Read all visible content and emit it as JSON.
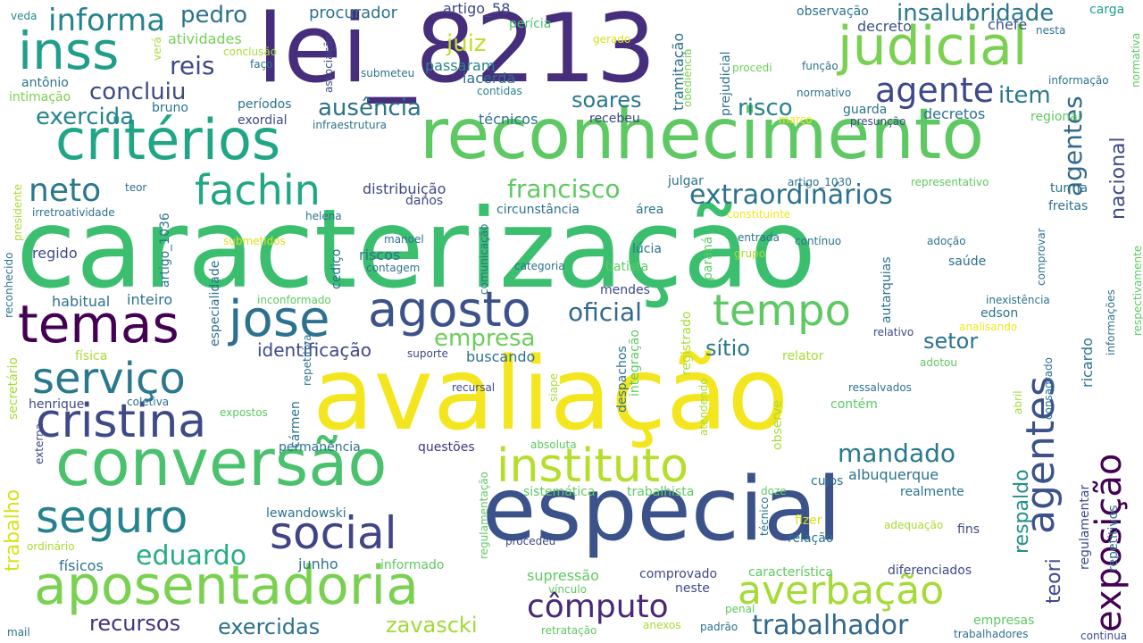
{
  "words": [
    {
      "text": "caracterização",
      "color": "#3bbf6f"
    },
    {
      "text": "avaliação",
      "color": "#f4e61e"
    },
    {
      "text": "lei_8213",
      "color": "#472e7c"
    },
    {
      "text": "especial",
      "color": "#3b528b"
    },
    {
      "text": "reconhecimento",
      "color": "#5ec962"
    },
    {
      "text": "conversão",
      "color": "#4ac16d"
    },
    {
      "text": "aposentadoria",
      "color": "#7ad151"
    },
    {
      "text": "critérios",
      "color": "#21a685"
    },
    {
      "text": "judicial",
      "color": "#7ad151"
    },
    {
      "text": "inss",
      "color": "#1f9e89"
    },
    {
      "text": "instituto",
      "color": "#b5de2b"
    },
    {
      "text": "averbação",
      "color": "#a5db36"
    },
    {
      "text": "cristina",
      "color": "#3e4989"
    },
    {
      "text": "temas",
      "color": "#440154"
    },
    {
      "text": "jose",
      "color": "#2c728e"
    },
    {
      "text": "agosto",
      "color": "#3b528b"
    },
    {
      "text": "tempo",
      "color": "#5ec962"
    },
    {
      "text": "seguro",
      "color": "#26828e"
    },
    {
      "text": "social",
      "color": "#414487"
    },
    {
      "text": "serviço",
      "color": "#2a788e"
    },
    {
      "text": "fachin",
      "color": "#22a785"
    },
    {
      "text": "neto",
      "color": "#2a788e"
    },
    {
      "text": "agentes",
      "color": "#3b528b"
    },
    {
      "text": "exposição",
      "color": "#440154"
    },
    {
      "text": "agente",
      "color": "#3e4989"
    },
    {
      "text": "cômputo",
      "color": "#482878"
    },
    {
      "text": "trabalhador",
      "color": "#31688e"
    },
    {
      "text": "informa",
      "color": "#26828e"
    },
    {
      "text": "eduardo",
      "color": "#26ad81"
    },
    {
      "text": "extraordinários",
      "color": "#2c728e"
    },
    {
      "text": "francisco",
      "color": "#5ec962"
    },
    {
      "text": "mandado",
      "color": "#2a788e"
    },
    {
      "text": "insalubridade",
      "color": "#2a788e"
    },
    {
      "text": "agentes",
      "color": "#31688e"
    },
    {
      "text": "concluiu",
      "color": "#3e4989"
    },
    {
      "text": "reis",
      "color": "#3e4989"
    },
    {
      "text": "juiz",
      "color": "#bddf26"
    },
    {
      "text": "oficial",
      "color": "#31688e"
    },
    {
      "text": "empresa",
      "color": "#6ccd5a"
    },
    {
      "text": "ausência",
      "color": "#2c728e"
    },
    {
      "text": "exercida",
      "color": "#25848e"
    },
    {
      "text": "pedro",
      "color": "#2c728e"
    },
    {
      "text": "item",
      "color": "#2a788e"
    },
    {
      "text": "risco",
      "color": "#26828e"
    },
    {
      "text": "soares",
      "color": "#2a788e"
    },
    {
      "text": "recursos",
      "color": "#46337e"
    },
    {
      "text": "exercidas",
      "color": "#2c728e"
    },
    {
      "text": "zavascki",
      "color": "#a0da39"
    },
    {
      "text": "setor",
      "color": "#2c728e"
    },
    {
      "text": "sítio",
      "color": "#2a788e"
    },
    {
      "text": "nacional",
      "color": "#3e4989"
    },
    {
      "text": "respaldo",
      "color": "#218f8d"
    },
    {
      "text": "teori",
      "color": "#3e4989"
    },
    {
      "text": "trabalho",
      "color": "#d8e219"
    },
    {
      "text": "identificação",
      "color": "#3e4989"
    },
    {
      "text": "procurador",
      "color": "#2c728e"
    },
    {
      "text": "artigo_58",
      "color": "#3e4989"
    },
    {
      "text": "perícia",
      "color": "#4ac16d"
    },
    {
      "text": "observação",
      "color": "#2c728e"
    },
    {
      "text": "carga",
      "color": "#1f9e89"
    },
    {
      "text": "decreto",
      "color": "#3b528b"
    },
    {
      "text": "chefe",
      "color": "#3b528b"
    },
    {
      "text": "nesta",
      "color": "#2c728e"
    },
    {
      "text": "veda",
      "color": "#25858e"
    },
    {
      "text": "atividades",
      "color": "#73d056"
    },
    {
      "text": "conclusão",
      "color": "#a8db34"
    },
    {
      "text": "faço",
      "color": "#2c728e"
    },
    {
      "text": "verá",
      "color": "#a8db34"
    },
    {
      "text": "associação",
      "color": "#3e4989"
    },
    {
      "text": "submeteu",
      "color": "#2c728e"
    },
    {
      "text": "gerado",
      "color": "#d8e219"
    },
    {
      "text": "passaram",
      "color": "#25858e"
    },
    {
      "text": "lacerda",
      "color": "#2c728e"
    },
    {
      "text": "contidas",
      "color": "#25858e"
    },
    {
      "text": "tramitação",
      "color": "#2c728e"
    },
    {
      "text": "obediência",
      "color": "#7ad151"
    },
    {
      "text": "prejudicial",
      "color": "#2c728e"
    },
    {
      "text": "procedi",
      "color": "#6ccd5a"
    },
    {
      "text": "função",
      "color": "#2c728e"
    },
    {
      "text": "normativo",
      "color": "#2c728e"
    },
    {
      "text": "informação",
      "color": "#2c728e"
    },
    {
      "text": "normativa",
      "color": "#5ec962"
    },
    {
      "text": "antônio",
      "color": "#2c728e"
    },
    {
      "text": "intimação",
      "color": "#7ad151"
    },
    {
      "text": "bruno",
      "color": "#2c728e"
    },
    {
      "text": "períodos",
      "color": "#2c728e"
    },
    {
      "text": "exordial",
      "color": "#3e4989"
    },
    {
      "text": "infraestrutura",
      "color": "#2c728e"
    },
    {
      "text": "técnicos",
      "color": "#2c728e"
    },
    {
      "text": "recebeu",
      "color": "#3e4989"
    },
    {
      "text": "guarda",
      "color": "#2c728e"
    },
    {
      "text": "presunção",
      "color": "#3e4989"
    },
    {
      "text": "decretos",
      "color": "#2c728e"
    },
    {
      "text": "regional",
      "color": "#5ec962"
    },
    {
      "text": "março",
      "color": "#f4e61e"
    },
    {
      "text": "teor",
      "color": "#2c728e"
    },
    {
      "text": "presidente",
      "color": "#a8db34"
    },
    {
      "text": "irretroatividade",
      "color": "#2c728e"
    },
    {
      "text": "artigo_1036",
      "color": "#2c728e"
    },
    {
      "text": "distribuição",
      "color": "#3e4989"
    },
    {
      "text": "danos",
      "color": "#3e4989"
    },
    {
      "text": "circunstância",
      "color": "#2c728e"
    },
    {
      "text": "área",
      "color": "#2c728e"
    },
    {
      "text": "julgar",
      "color": "#2c728e"
    },
    {
      "text": "artigo_1030",
      "color": "#2c728e"
    },
    {
      "text": "representativo",
      "color": "#5ec962"
    },
    {
      "text": "turma",
      "color": "#2c728e"
    },
    {
      "text": "freitas",
      "color": "#2c728e"
    },
    {
      "text": "constituinte",
      "color": "#f4e61e"
    },
    {
      "text": "helena",
      "color": "#2c728e"
    },
    {
      "text": "regido",
      "color": "#3e4989"
    },
    {
      "text": "especialidade",
      "color": "#2c728e"
    },
    {
      "text": "submetidos",
      "color": "#d8e219"
    },
    {
      "text": "manoel",
      "color": "#2c728e"
    },
    {
      "text": "riscos",
      "color": "#2c728e"
    },
    {
      "text": "contagem",
      "color": "#2c728e"
    },
    {
      "text": "comunicação",
      "color": "#2c728e"
    },
    {
      "text": "lúcia",
      "color": "#2c728e"
    },
    {
      "text": "batista",
      "color": "#5ec962"
    },
    {
      "text": "categoria",
      "color": "#2c728e"
    },
    {
      "text": "paraná",
      "color": "#5ec962"
    },
    {
      "text": "entrada",
      "color": "#2c728e"
    },
    {
      "text": "grupo",
      "color": "#a8db34"
    },
    {
      "text": "contínuo",
      "color": "#2c728e"
    },
    {
      "text": "adoção",
      "color": "#2c728e"
    },
    {
      "text": "comprovar",
      "color": "#2c728e"
    },
    {
      "text": "saúde",
      "color": "#2c728e"
    },
    {
      "text": "autarquias",
      "color": "#2c728e"
    },
    {
      "text": "reconhecido",
      "color": "#2c728e"
    },
    {
      "text": "habitual",
      "color": "#2c728e"
    },
    {
      "text": "inteiro",
      "color": "#2c728e"
    },
    {
      "text": "inconformado",
      "color": "#5ec962"
    },
    {
      "text": "cediço",
      "color": "#2c728e"
    },
    {
      "text": "mendes",
      "color": "#3e4989"
    },
    {
      "text": "inexistência",
      "color": "#2c728e"
    },
    {
      "text": "edson",
      "color": "#2c728e"
    },
    {
      "text": "analisando",
      "color": "#f4e61e"
    },
    {
      "text": "informações",
      "color": "#2c728e"
    },
    {
      "text": "respectivamente",
      "color": "#5ec962"
    },
    {
      "text": "secretário",
      "color": "#a8db34"
    },
    {
      "text": "física",
      "color": "#a8db34"
    },
    {
      "text": "suporte",
      "color": "#3e4989"
    },
    {
      "text": "buscando",
      "color": "#2c728e"
    },
    {
      "text": "relator",
      "color": "#a8db34"
    },
    {
      "text": "relativo",
      "color": "#3e4989"
    },
    {
      "text": "adotou",
      "color": "#5ec962"
    },
    {
      "text": "despachos",
      "color": "#2c728e"
    },
    {
      "text": "integração",
      "color": "#5ec962"
    },
    {
      "text": "registrado",
      "color": "#a8db34"
    },
    {
      "text": "observe",
      "color": "#a8db34"
    },
    {
      "text": "ricardo",
      "color": "#2c728e"
    },
    {
      "text": "consagrado",
      "color": "#2c728e"
    },
    {
      "text": "siape",
      "color": "#a8db34"
    },
    {
      "text": "repetitiva",
      "color": "#2c728e"
    },
    {
      "text": "recursal",
      "color": "#3e4989"
    },
    {
      "text": "henrique",
      "color": "#3e4989"
    },
    {
      "text": "coletiva",
      "color": "#2c728e"
    },
    {
      "text": "expostos",
      "color": "#5ec962"
    },
    {
      "text": "cármen",
      "color": "#2c728e"
    },
    {
      "text": "atendendo",
      "color": "#a8db34"
    },
    {
      "text": "ressalvados",
      "color": "#2c728e"
    },
    {
      "text": "abril",
      "color": "#a8db34"
    },
    {
      "text": "contém",
      "color": "#5ec962"
    },
    {
      "text": "externa",
      "color": "#3e4989"
    },
    {
      "text": "permanência",
      "color": "#2c728e"
    },
    {
      "text": "questões",
      "color": "#46337e"
    },
    {
      "text": "absoluta",
      "color": "#5ec962"
    },
    {
      "text": "cujos",
      "color": "#2c728e"
    },
    {
      "text": "albuquerque",
      "color": "#2c728e"
    },
    {
      "text": "regulamentação",
      "color": "#5ec962"
    },
    {
      "text": "sistemática",
      "color": "#5ec962"
    },
    {
      "text": "trabalhista",
      "color": "#5ec962"
    },
    {
      "text": "doze",
      "color": "#5ec962"
    },
    {
      "text": "adequação",
      "color": "#a8db34"
    },
    {
      "text": "realmente",
      "color": "#2c728e"
    },
    {
      "text": "lewandowski",
      "color": "#2c728e"
    },
    {
      "text": "técnico",
      "color": "#2c728e"
    },
    {
      "text": "fizer",
      "color": "#d8e219"
    },
    {
      "text": "relação",
      "color": "#2c728e"
    },
    {
      "text": "fins",
      "color": "#3e4989"
    },
    {
      "text": "regulamentar",
      "color": "#3e4989"
    },
    {
      "text": "repetitivos",
      "color": "#2c728e"
    },
    {
      "text": "ordinário",
      "color": "#a8db34"
    },
    {
      "text": "físicos",
      "color": "#2c728e"
    },
    {
      "text": "junho",
      "color": "#2c728e"
    },
    {
      "text": "informado",
      "color": "#5ec962"
    },
    {
      "text": "procedeu",
      "color": "#3e4989"
    },
    {
      "text": "supressão",
      "color": "#5ec962"
    },
    {
      "text": "comprovado",
      "color": "#3e4989"
    },
    {
      "text": "característica",
      "color": "#5ec962"
    },
    {
      "text": "diferenciados",
      "color": "#3e4989"
    },
    {
      "text": "vínculo",
      "color": "#5ec962"
    },
    {
      "text": "neste",
      "color": "#3e4989"
    },
    {
      "text": "penal",
      "color": "#5ec962"
    },
    {
      "text": "mail",
      "color": "#2c728e"
    },
    {
      "text": "retratação",
      "color": "#5ec962"
    },
    {
      "text": "anexos",
      "color": "#a8db34"
    },
    {
      "text": "padrão",
      "color": "#2c728e"
    },
    {
      "text": "empresas",
      "color": "#5ec962"
    },
    {
      "text": "trabalhadores",
      "color": "#2c728e"
    },
    {
      "text": "continua",
      "color": "#3e4989"
    }
  ]
}
